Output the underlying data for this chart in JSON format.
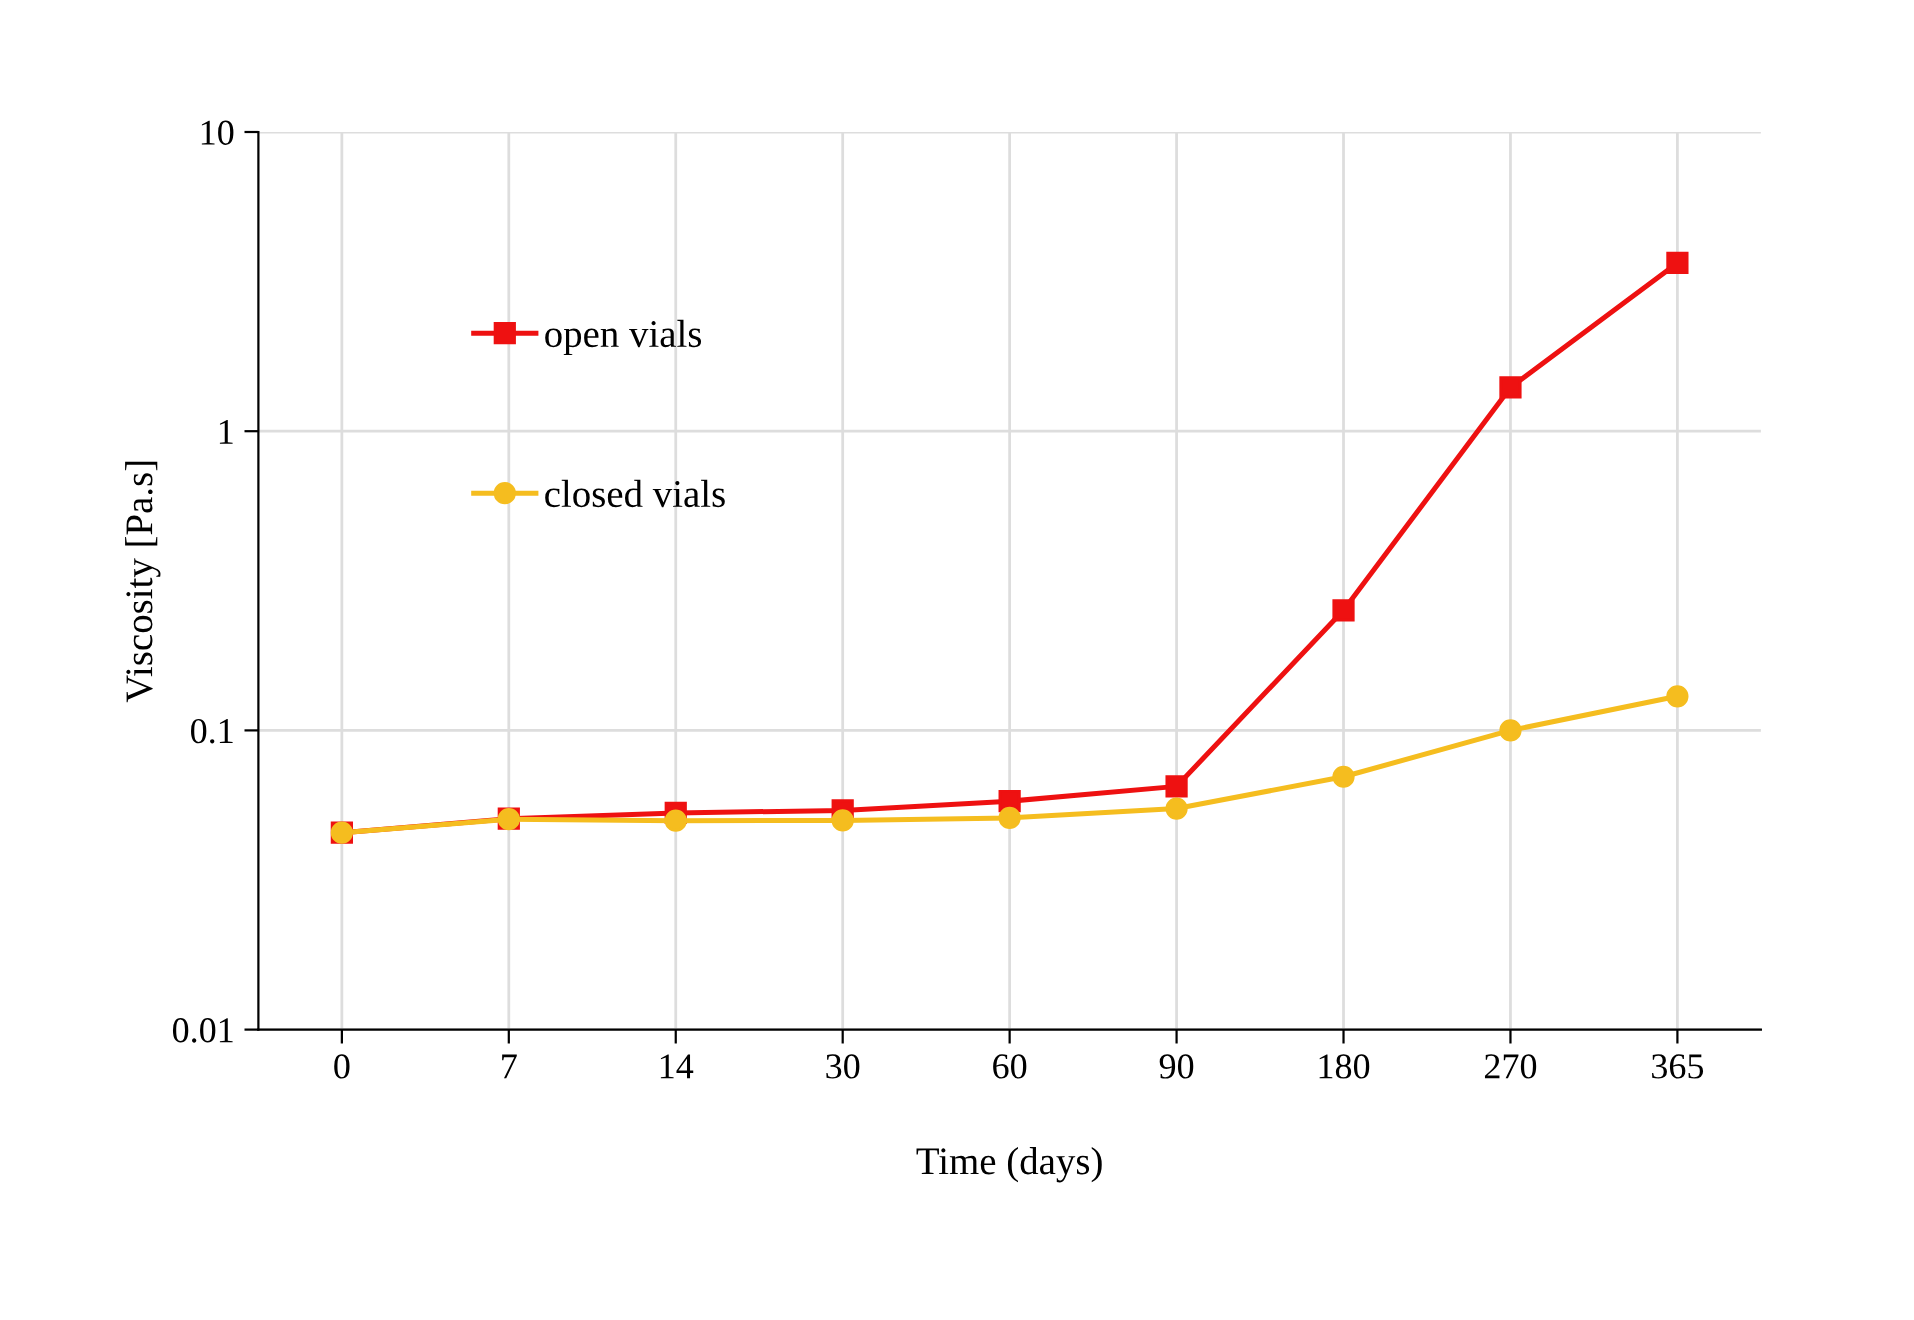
{
  "chart_data": {
    "type": "line",
    "xlabel": "Time (days)",
    "ylabel": "Viscosity [Pa.s]",
    "categories": [
      "0",
      "7",
      "14",
      "30",
      "60",
      "90",
      "180",
      "270",
      "365"
    ],
    "log": "y",
    "ylim": [
      0.01,
      10
    ],
    "yticks": [
      0.01,
      0.1,
      1,
      10
    ],
    "grid": true,
    "legend": "top left",
    "series": [
      {
        "name": "open vials",
        "color": "#ee1111",
        "marker": "square",
        "values": [
          0.0455,
          0.0507,
          0.053,
          0.054,
          0.058,
          0.065,
          0.252,
          1.4,
          3.65
        ]
      },
      {
        "name": "closed vials",
        "color": "#f5bd1f",
        "marker": "circle",
        "values": [
          0.0455,
          0.0505,
          0.0499,
          0.05,
          0.051,
          0.0548,
          0.07,
          0.1,
          0.13
        ]
      }
    ]
  }
}
